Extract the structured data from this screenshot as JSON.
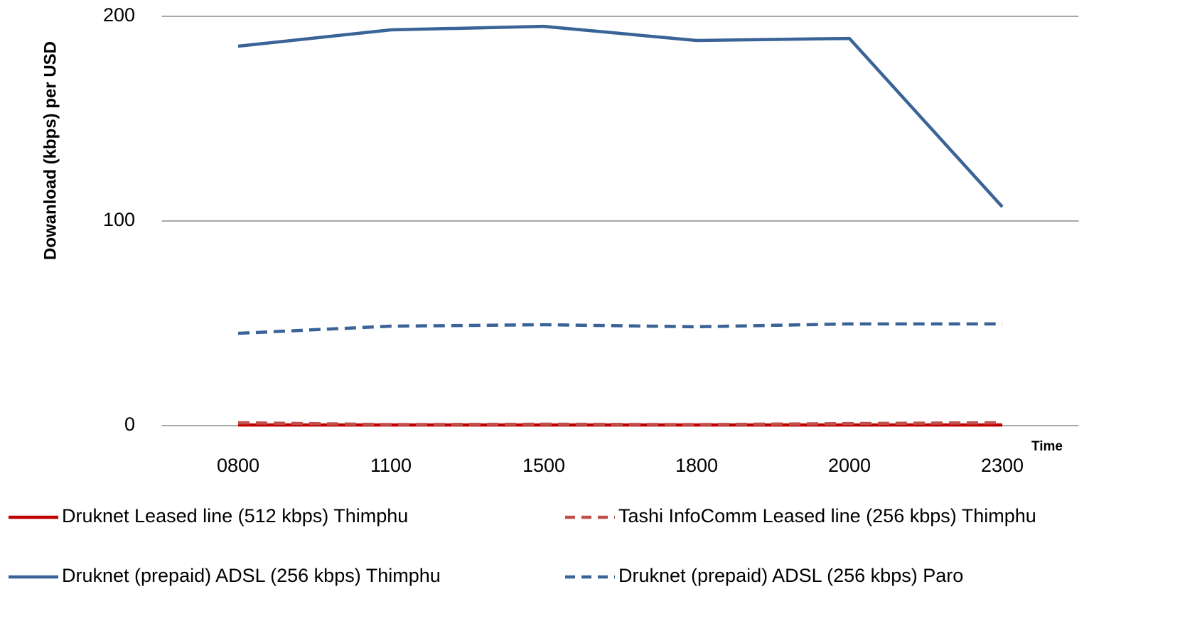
{
  "chart_data": {
    "type": "line",
    "y_label": "Dowanload (kbps) per USD",
    "x_label": "Time",
    "categories": [
      "0800",
      "1100",
      "1500",
      "1800",
      "2000",
      "2300"
    ],
    "series": [
      {
        "name": "Druknet Leased line (512 kbps) Thimphu",
        "color": "#c00000",
        "dash": false,
        "values": [
          0.3,
          0.3,
          0.3,
          0.3,
          0.3,
          0.3
        ]
      },
      {
        "name": "Tashi InfoComm Leased line (256 kbps) Thimphu",
        "color": "#c0504d",
        "dash": true,
        "values": [
          1.4,
          0.5,
          0.7,
          0.5,
          1.0,
          1.4
        ]
      },
      {
        "name": "Druknet (prepaid) ADSL (256 kbps) Thimphu",
        "color": "#3a6397",
        "dash": false,
        "values": [
          185.4,
          193.4,
          195.1,
          188.2,
          189.2,
          106.9
        ]
      },
      {
        "name": "Druknet (prepaid) ADSL (256 kbps) Paro",
        "color": "#3a6397",
        "dash": true,
        "values": [
          45.1,
          48.6,
          49.3,
          48.3,
          49.7,
          49.7
        ]
      }
    ],
    "ylim": [
      0,
      200
    ],
    "yticks": [
      0,
      100,
      200
    ],
    "grid": true
  }
}
